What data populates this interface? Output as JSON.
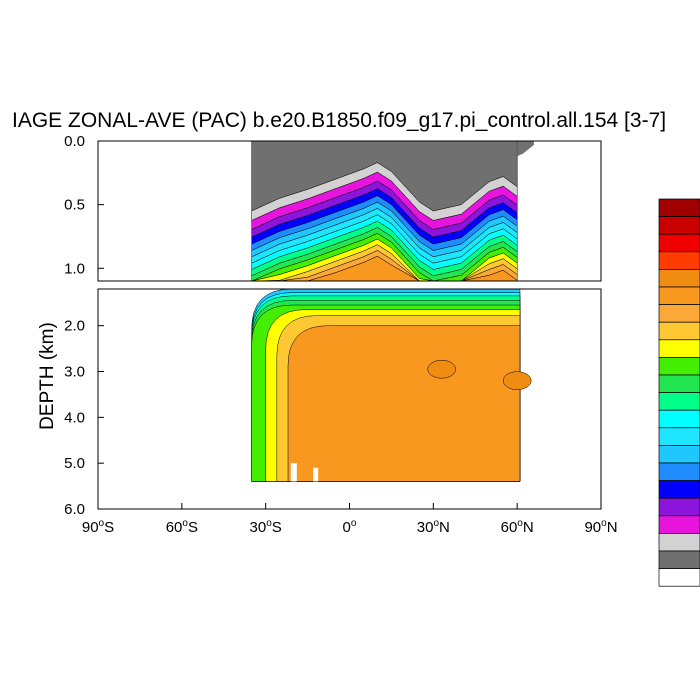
{
  "chart_data": {
    "type": "contour",
    "title": "IAGE ZONAL-AVE (PAC) b.e20.B1850.f09_g17.pi_control.all.154 [3-7]",
    "ylabel": "DEPTH (km)",
    "xlabel": "",
    "x_range": [
      -90,
      90
    ],
    "x_ticks": [
      {
        "value": -90,
        "label": "90",
        "hemi": "S"
      },
      {
        "value": -60,
        "label": "60",
        "hemi": "S"
      },
      {
        "value": -30,
        "label": "30",
        "hemi": "S"
      },
      {
        "value": 0,
        "label": "0",
        "hemi": ""
      },
      {
        "value": 30,
        "label": "30",
        "hemi": "N"
      },
      {
        "value": 60,
        "label": "60",
        "hemi": "N"
      },
      {
        "value": 90,
        "label": "90",
        "hemi": "N"
      }
    ],
    "degree_symbol": "o",
    "panels": [
      {
        "name": "upper",
        "ylim": [
          0.0,
          1.1
        ],
        "y_ticks": [
          {
            "value": 0.0,
            "label": "0.0"
          },
          {
            "value": 0.5,
            "label": "0.5"
          },
          {
            "value": 1.0,
            "label": "1.0"
          }
        ]
      },
      {
        "name": "lower",
        "ylim": [
          1.2,
          6.0
        ],
        "y_ticks": [
          {
            "value": 2.0,
            "label": "2.0"
          },
          {
            "value": 3.0,
            "label": "3.0"
          },
          {
            "value": 4.0,
            "label": "4.0"
          },
          {
            "value": 5.0,
            "label": "5.0"
          },
          {
            "value": 6.0,
            "label": "6.0"
          }
        ]
      }
    ],
    "colorbar_colors": [
      "#a00000",
      "#c80000",
      "#f00000",
      "#ff3c00",
      "#f08c0f",
      "#f8981e",
      "#fba838",
      "#fdc832",
      "#ffff00",
      "#44ee00",
      "#22e650",
      "#00ff88",
      "#00ffff",
      "#1ee6ff",
      "#1ec8ff",
      "#1e8cff",
      "#0000ff",
      "#8c14dc",
      "#e614dc",
      "#d2d2d2",
      "#707070",
      "#ffffff"
    ],
    "band_colors_surface_to_deep": [
      "#707070",
      "#d2d2d2",
      "#e614dc",
      "#8c14dc",
      "#0000ff",
      "#1e8cff",
      "#1ec8ff",
      "#1ee6ff",
      "#00ffff",
      "#00ff88",
      "#22e650",
      "#44ee00",
      "#ffff00",
      "#fdc832",
      "#fba838",
      "#f8981e"
    ],
    "upper_data": {
      "lat": [
        -35,
        -25,
        -15,
        -5,
        5,
        10,
        15,
        25,
        30,
        40,
        50,
        55,
        60
      ],
      "band_thickness_km": [
        0.095,
        0.075,
        0.07,
        0.06,
        0.055,
        0.05,
        0.05,
        0.05,
        0.05,
        0.05,
        0.045,
        0.045,
        0.045,
        0.045,
        0.045,
        0.05
      ],
      "surface_layer_depth_km": [
        0.55,
        0.45,
        0.38,
        0.3,
        0.22,
        0.17,
        0.24,
        0.48,
        0.55,
        0.5,
        0.32,
        0.28,
        0.36
      ]
    },
    "lower_data": {
      "lat_range": [
        -35,
        61
      ],
      "depth_range_km": [
        1.2,
        5.4
      ],
      "plateau_value": "#f8981e",
      "patches": [
        {
          "center_lat": 33,
          "center_depth_km": 2.95,
          "color": "#f08c0f"
        },
        {
          "center_lat": 60,
          "center_depth_km": 3.2,
          "color": "#f08c0f"
        }
      ]
    }
  }
}
